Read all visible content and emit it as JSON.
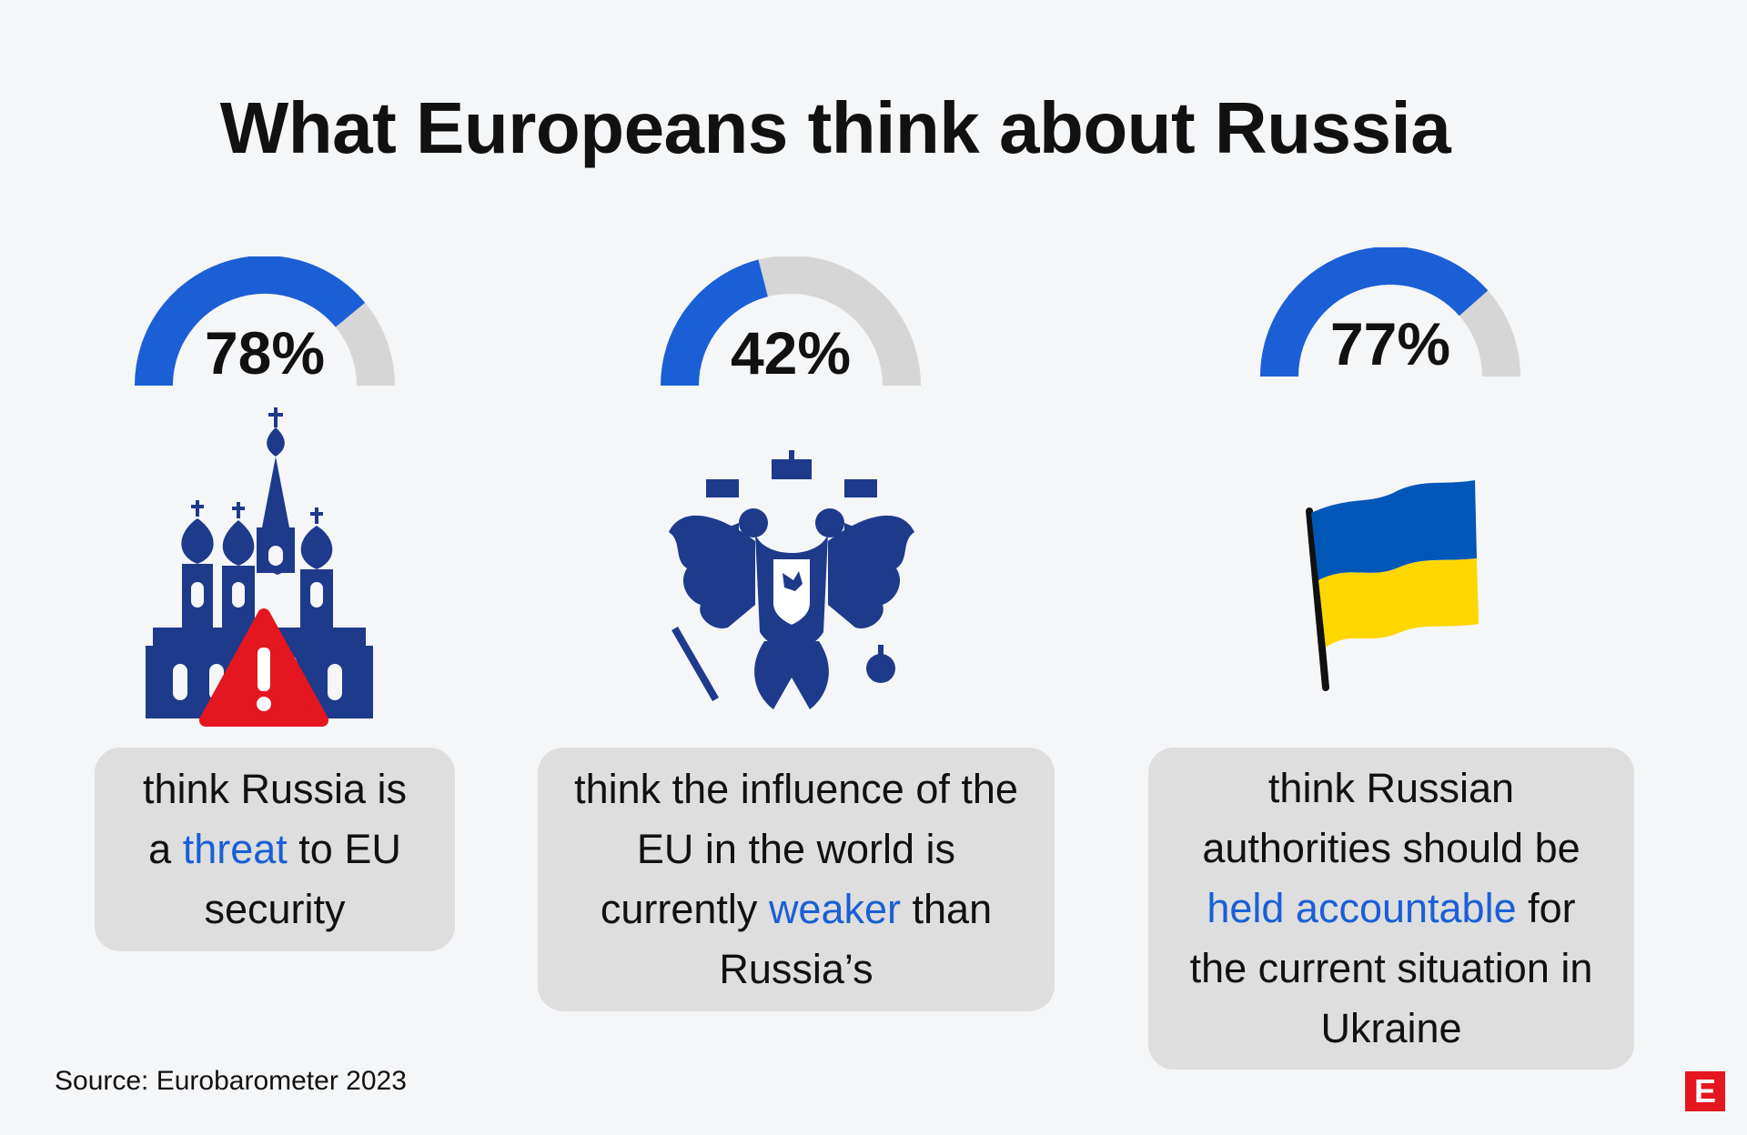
{
  "title": "What Europeans think about Russia",
  "colors": {
    "accent": "#1a5fd6",
    "track": "#d6d6d6",
    "card": "#dedede",
    "logo": "#e4161f"
  },
  "chart_data": [
    {
      "type": "gauge",
      "value": 78,
      "value_label": "78%",
      "max": 100,
      "icon": "kremlin-warning-icon",
      "caption": {
        "pre": "think Russia is a ",
        "highlight": "threat",
        "post": " to EU security"
      }
    },
    {
      "type": "gauge",
      "value": 42,
      "value_label": "42%",
      "max": 100,
      "icon": "double-headed-eagle-icon",
      "caption": {
        "pre": "think the influence of the EU in the world is currently ",
        "highlight": "weaker",
        "post": " than Russia’s"
      }
    },
    {
      "type": "gauge",
      "value": 77,
      "value_label": "77%",
      "max": 100,
      "icon": "ukraine-flag-icon",
      "caption": {
        "pre": "think Russian authorities should be ",
        "highlight": "held accountable",
        "post": " for the current situation in Ukraine"
      }
    }
  ],
  "source": "Source: Eurobarometer 2023",
  "logo_letter": "E"
}
